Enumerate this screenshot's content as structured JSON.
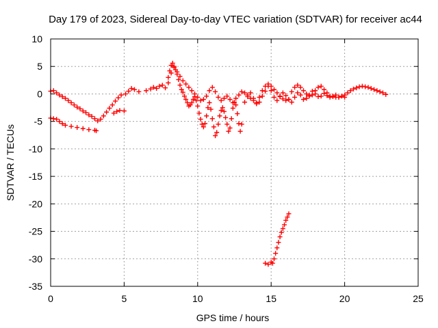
{
  "chart_data": {
    "type": "scatter",
    "title": "Day 179 of 2023, Sidereal Day-to-day VTEC variation (SDTVAR) for receiver ac44",
    "xlabel": "GPS time / hours",
    "ylabel": "SDTVAR / TECUs",
    "xlim": [
      0,
      25
    ],
    "ylim": [
      -35,
      10
    ],
    "xticks": [
      "0",
      "5",
      "10",
      "15",
      "20",
      "25"
    ],
    "yticks": [
      "10",
      "5",
      "0",
      "-5",
      "-10",
      "-15",
      "-20",
      "-25",
      "-30",
      "-35"
    ],
    "grid": true,
    "marker": "plus",
    "series": [
      {
        "name": "SDTVAR",
        "color": "#ff0000",
        "x": [
          0.0,
          0.2,
          0.4,
          0.6,
          0.8,
          1.0,
          1.2,
          1.4,
          1.6,
          1.8,
          2.0,
          2.2,
          2.4,
          2.6,
          2.8,
          3.0,
          3.2,
          3.4,
          3.6,
          3.8,
          4.0,
          4.2,
          4.4,
          4.6,
          4.8,
          0.0,
          0.2,
          0.4,
          0.6,
          0.8,
          1.0,
          1.4,
          1.8,
          2.2,
          2.6,
          3.0,
          3.1,
          4.3,
          4.5,
          4.7,
          5.0,
          5.1,
          5.3,
          5.5,
          5.7,
          6.0,
          6.5,
          6.8,
          7.0,
          7.2,
          7.4,
          7.6,
          7.8,
          8.0,
          8.1,
          8.2,
          8.3,
          8.4,
          8.5,
          8.6,
          8.7,
          8.8,
          8.9,
          9.0,
          9.1,
          9.2,
          9.3,
          9.4,
          9.5,
          9.6,
          9.7,
          9.8,
          9.9,
          10.0,
          10.1,
          10.2,
          10.3,
          10.4,
          10.5,
          10.6,
          10.7,
          10.8,
          10.9,
          11.0,
          11.1,
          11.2,
          11.3,
          11.4,
          11.5,
          11.6,
          11.7,
          11.8,
          11.9,
          12.0,
          12.1,
          12.2,
          12.3,
          12.4,
          12.5,
          12.6,
          12.7,
          12.8,
          12.9,
          13.0,
          13.2,
          13.4,
          13.6,
          13.8,
          14.0,
          14.2,
          14.4,
          14.6,
          14.8,
          15.0,
          15.2,
          15.4,
          15.6,
          15.8,
          16.0,
          16.2,
          16.4,
          16.6,
          16.8,
          17.0,
          17.2,
          17.4,
          17.6,
          17.8,
          18.0,
          18.2,
          18.4,
          18.6,
          18.8,
          19.0,
          19.2,
          19.4,
          19.6,
          19.8,
          20.0,
          20.2,
          20.4,
          20.6,
          20.8,
          21.0,
          21.2,
          21.4,
          21.6,
          21.8,
          22.0,
          22.2,
          22.4,
          22.6,
          22.8,
          8.0,
          8.2,
          8.4,
          8.6,
          8.8,
          9.0,
          9.2,
          9.4,
          9.6,
          9.8,
          10.0,
          10.2,
          10.4,
          10.6,
          10.8,
          11.0,
          11.2,
          11.4,
          11.6,
          11.8,
          12.0,
          12.2,
          12.4,
          12.6,
          12.8,
          13.0,
          13.2,
          13.4,
          13.6,
          13.8,
          14.0,
          14.2,
          14.4,
          14.6,
          14.8,
          15.0,
          15.2,
          15.4,
          15.6,
          15.8,
          16.0,
          16.2,
          16.4,
          16.6,
          16.8,
          17.0,
          17.2,
          17.4,
          17.6,
          17.8,
          18.0,
          18.2,
          18.4,
          18.6,
          18.8,
          19.0,
          19.2,
          19.4,
          19.6,
          19.8,
          20.0,
          14.6,
          14.8,
          15.0,
          15.1,
          15.2,
          15.3,
          15.4,
          15.5,
          15.6,
          15.7,
          15.8,
          15.9,
          16.0,
          16.1,
          16.2
        ],
        "y": [
          0.5,
          0.6,
          0.2,
          -0.2,
          -0.5,
          -0.8,
          -1.2,
          -1.6,
          -2.0,
          -2.4,
          -2.7,
          -3.1,
          -3.4,
          -3.8,
          -4.1,
          -4.5,
          -4.9,
          -4.6,
          -4.0,
          -3.3,
          -2.6,
          -2.0,
          -1.3,
          -0.7,
          -0.2,
          -4.4,
          -4.5,
          -4.6,
          -5.0,
          -5.4,
          -5.7,
          -5.9,
          -6.1,
          -6.3,
          -6.5,
          -6.6,
          -6.7,
          -3.5,
          -3.2,
          -3.0,
          -3.1,
          0.0,
          0.5,
          1.0,
          0.8,
          0.4,
          0.6,
          0.9,
          1.2,
          1.0,
          1.4,
          1.6,
          1.1,
          2.0,
          4.2,
          5.2,
          5.6,
          5.0,
          4.4,
          3.6,
          2.6,
          1.6,
          0.8,
          0.3,
          -0.4,
          -1.0,
          -1.6,
          -2.2,
          -2.0,
          -1.6,
          -1.0,
          -0.5,
          -1.2,
          -2.2,
          -3.5,
          -4.6,
          -5.5,
          -6.0,
          -5.4,
          -4.0,
          -2.5,
          -1.6,
          -2.8,
          -4.5,
          -6.0,
          -7.6,
          -7.0,
          -5.5,
          -4.0,
          -3.0,
          -2.5,
          -3.2,
          -4.3,
          -5.5,
          -6.8,
          -6.2,
          -4.5,
          -2.6,
          -1.5,
          -2.0,
          -3.6,
          -5.4,
          -6.8,
          -5.5,
          -1.5,
          -0.5,
          0.2,
          -0.8,
          -1.8,
          -1.5,
          -0.4,
          0.5,
          1.4,
          0.6,
          -0.6,
          -1.2,
          -0.5,
          0.2,
          -0.3,
          -1.0,
          -1.5,
          -0.6,
          0.2,
          -0.2,
          -1.0,
          -0.8,
          -0.2,
          0.5,
          0.0,
          -0.5,
          -0.4,
          0.1,
          -0.3,
          -0.6,
          -0.5,
          -0.2,
          -0.6,
          -0.4,
          -0.2,
          0.2,
          0.6,
          0.9,
          1.1,
          1.3,
          1.4,
          1.3,
          1.2,
          1.0,
          0.8,
          0.6,
          0.4,
          0.2,
          -0.1,
          3.0,
          3.8,
          4.8,
          4.0,
          3.2,
          2.4,
          1.8,
          1.2,
          0.6,
          0.0,
          -0.6,
          -1.2,
          -1.0,
          -0.4,
          0.6,
          1.2,
          0.4,
          -0.6,
          -1.2,
          -0.8,
          -0.4,
          -1.0,
          -1.6,
          -0.8,
          -0.2,
          0.4,
          0.2,
          -0.2,
          -0.8,
          -1.2,
          -1.6,
          -0.6,
          0.6,
          1.4,
          1.8,
          1.4,
          0.8,
          0.2,
          -0.4,
          -0.9,
          -1.2,
          -1.0,
          0.4,
          1.2,
          1.6,
          1.2,
          0.6,
          0.0,
          -0.4,
          -0.2,
          0.6,
          1.2,
          1.4,
          0.8,
          0.2,
          -0.4,
          -0.4,
          -0.6,
          -0.6,
          -0.4,
          -0.6,
          -30.8,
          -31.0,
          -30.6,
          -30.8,
          -30.0,
          -29.0,
          -28.0,
          -27.0,
          -26.0,
          -25.2,
          -24.5,
          -23.8,
          -23.0,
          -22.4,
          -21.8
        ]
      }
    ]
  }
}
